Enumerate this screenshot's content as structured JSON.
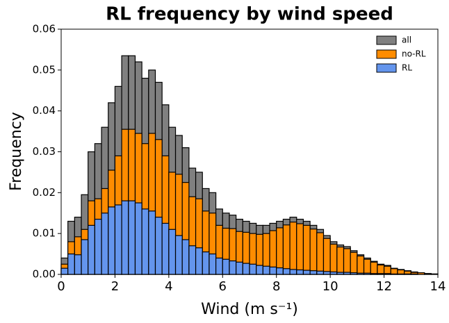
{
  "chart_data": {
    "type": "histogram",
    "title": "RL frequency by wind speed",
    "x_label": "Wind (m s⁻¹)",
    "y_label": "Frequency",
    "bins": [
      0,
      0.25,
      0.5,
      0.75,
      1,
      1.25,
      1.5,
      1.75,
      2,
      2.25,
      2.5,
      2.75,
      3,
      3.25,
      3.5,
      3.75,
      4,
      4.25,
      4.5,
      4.75,
      5,
      5.25,
      5.5,
      5.75,
      6,
      6.25,
      6.5,
      6.75,
      7,
      7.25,
      7.5,
      7.75,
      8,
      8.25,
      8.5,
      8.75,
      9,
      9.25,
      9.5,
      9.75,
      10,
      10.25,
      10.5,
      10.75,
      11,
      11.25,
      11.5,
      11.75,
      12,
      12.25,
      12.5,
      12.75,
      13,
      13.25,
      13.5,
      13.75,
      14
    ],
    "series": [
      {
        "name": "all",
        "color": "#808080",
        "values": [
          0.004,
          0.013,
          0.014,
          0.0195,
          0.03,
          0.032,
          0.036,
          0.042,
          0.046,
          0.0535,
          0.0535,
          0.052,
          0.048,
          0.05,
          0.047,
          0.0415,
          0.036,
          0.034,
          0.031,
          0.026,
          0.025,
          0.021,
          0.02,
          0.016,
          0.015,
          0.0145,
          0.0135,
          0.013,
          0.0125,
          0.012,
          0.012,
          0.0125,
          0.013,
          0.0135,
          0.014,
          0.0135,
          0.013,
          0.012,
          0.011,
          0.0095,
          0.008,
          0.0072,
          0.0068,
          0.0058,
          0.0048,
          0.004,
          0.0032,
          0.0025,
          0.0022,
          0.0015,
          0.0012,
          0.0009,
          0.0006,
          0.0004,
          0.0002,
          0.0001
        ]
      },
      {
        "name": "no-RL",
        "color": "#ff8c00",
        "values": [
          0.0025,
          0.008,
          0.0092,
          0.011,
          0.018,
          0.0185,
          0.021,
          0.0255,
          0.029,
          0.0355,
          0.0355,
          0.0345,
          0.032,
          0.0345,
          0.033,
          0.029,
          0.025,
          0.0245,
          0.0225,
          0.019,
          0.0185,
          0.0155,
          0.015,
          0.012,
          0.0113,
          0.0112,
          0.0105,
          0.0103,
          0.01,
          0.0098,
          0.01,
          0.0107,
          0.0114,
          0.0121,
          0.0128,
          0.0124,
          0.012,
          0.0111,
          0.0102,
          0.0088,
          0.0074,
          0.0067,
          0.0063,
          0.0054,
          0.0045,
          0.0037,
          0.003,
          0.0023,
          0.002,
          0.0014,
          0.0011,
          0.0008,
          0.0005,
          0.0004,
          0.0002,
          0.0001
        ]
      },
      {
        "name": "RL",
        "color": "#6495ed",
        "values": [
          0.0015,
          0.005,
          0.0048,
          0.0085,
          0.012,
          0.0135,
          0.015,
          0.0165,
          0.017,
          0.018,
          0.018,
          0.0175,
          0.016,
          0.0155,
          0.014,
          0.0125,
          0.011,
          0.0095,
          0.0085,
          0.007,
          0.0065,
          0.0055,
          0.005,
          0.004,
          0.0037,
          0.0033,
          0.003,
          0.0027,
          0.0025,
          0.0022,
          0.002,
          0.0018,
          0.0016,
          0.0014,
          0.0012,
          0.0011,
          0.001,
          0.0009,
          0.0008,
          0.0007,
          0.0006,
          0.0005,
          0.0005,
          0.0004,
          0.0003,
          0.0003,
          0.0002,
          0.0002,
          0.0002,
          0.0001,
          0.0001,
          0.0001,
          0.0001,
          0.0,
          0.0,
          0.0
        ]
      }
    ],
    "xlim": [
      0,
      14
    ],
    "xticks": [
      0,
      2,
      4,
      6,
      8,
      10,
      12,
      14
    ],
    "ylim": [
      0,
      0.06
    ],
    "yticks": [
      {
        "value": 0,
        "label": "0.00"
      },
      {
        "value": 0.01,
        "label": "0.01"
      },
      {
        "value": 0.02,
        "label": "0.02"
      },
      {
        "value": 0.03,
        "label": "0.03"
      },
      {
        "value": 0.04,
        "label": "0.04"
      },
      {
        "value": 0.05,
        "label": "0.05"
      },
      {
        "value": 0.06,
        "label": "0.06"
      }
    ],
    "legend": "upper right"
  }
}
